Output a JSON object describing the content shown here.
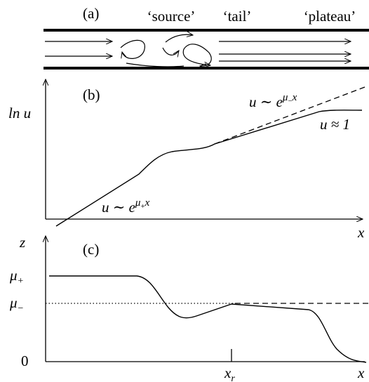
{
  "panel_a": {
    "label": "(a)",
    "regions": [
      "‘source’",
      "‘tail’",
      "‘plateau’"
    ]
  },
  "panel_b": {
    "label": "(b)",
    "y_axis_label": "ln u",
    "x_axis_label": "x",
    "annotations": [
      {
        "base": "u ∼ e",
        "exponent": "μ",
        "exponent_sub": "−",
        "exponent_tail": "x"
      },
      {
        "base": "u ≈ 1"
      },
      {
        "base": "u ∼ e",
        "exponent": "μ",
        "exponent_sub": "+",
        "exponent_tail": "x"
      }
    ]
  },
  "panel_c": {
    "label": "(c)",
    "y_axis_label": "z",
    "x_axis_label": "x",
    "y_labels": [
      {
        "symbol": "μ",
        "sub": "+"
      },
      {
        "symbol": "μ",
        "sub": "−"
      },
      {
        "symbol": "0"
      }
    ],
    "x_labels": [
      {
        "symbol": "x",
        "sub": "r"
      }
    ]
  }
}
